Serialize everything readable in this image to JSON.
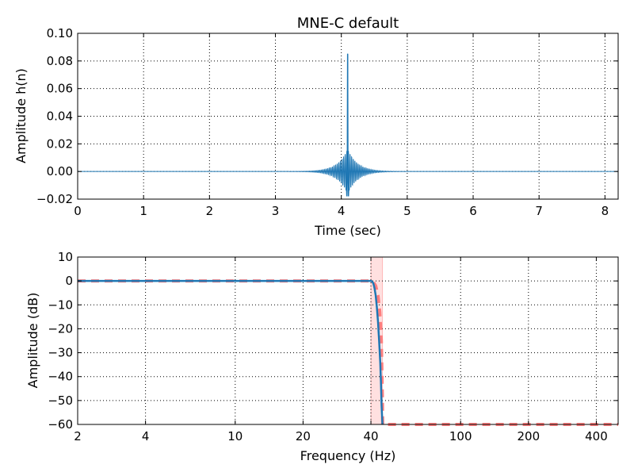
{
  "chart_data": [
    {
      "type": "line",
      "title": "MNE-C default",
      "xlabel": "Time (sec)",
      "ylabel": "Amplitude h(n)",
      "xlim": [
        0,
        8.2
      ],
      "ylim": [
        -0.02,
        0.1
      ],
      "grid": true,
      "xticks": [
        "0",
        "1",
        "2",
        "3",
        "4",
        "5",
        "6",
        "7",
        "8"
      ],
      "yticks": [
        "−0.02",
        "0.00",
        "0.02",
        "0.04",
        "0.06",
        "0.08",
        "0.10"
      ],
      "colors": {
        "series": "#1f77b4"
      },
      "series": [
        {
          "kernel": {
            "center": 4.096,
            "peak": 0.085,
            "first_sidelobe": -0.018,
            "sidelobe_spacing": 0.0122,
            "decay_seconds": 0.15
          }
        }
      ]
    },
    {
      "type": "line",
      "title": "",
      "xlabel": "Frequency (Hz)",
      "ylabel": "Amplitude (dB)",
      "xscale": "log",
      "xlim": [
        2,
        500
      ],
      "ylim": [
        -60,
        10
      ],
      "grid": true,
      "xticks": [
        "2",
        "4",
        "10",
        "20",
        "40",
        "100",
        "200",
        "400"
      ],
      "yticks": [
        "−60",
        "−50",
        "−40",
        "−30",
        "−20",
        "−10",
        "0",
        "10"
      ],
      "colors": {
        "response": "#1f77b4",
        "ideal": "#ff7f7f",
        "band": "#ffcccc"
      },
      "transition_band_hz": [
        40,
        45
      ],
      "series": [
        {
          "style": "solid",
          "x": [
            2,
            10,
            30,
            38,
            40,
            40.5,
            41,
            41.5,
            42,
            42.5,
            43,
            43.5,
            44,
            44.3,
            44.6,
            45
          ],
          "y": [
            0,
            0,
            0,
            0,
            0,
            -0.2,
            -1,
            -3,
            -6,
            -11,
            -17,
            -25,
            -34,
            -42,
            -52,
            -60
          ]
        },
        {
          "style": "dashed",
          "x": [
            2,
            10,
            30,
            40,
            41,
            42,
            43,
            43.8,
            44.5,
            45,
            45.1,
            100,
            500
          ],
          "y": [
            0,
            0,
            0,
            0,
            -0.5,
            -2,
            -6,
            -13,
            -25,
            -50,
            -60,
            -60,
            -60
          ]
        }
      ]
    }
  ]
}
